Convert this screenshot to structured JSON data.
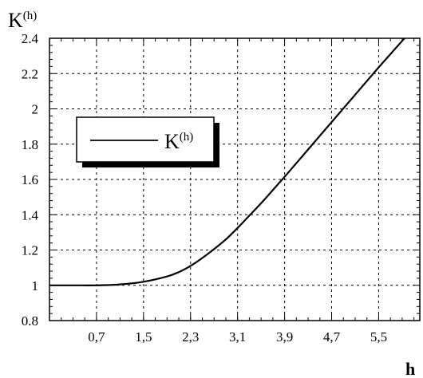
{
  "chart_data": {
    "type": "line",
    "title": "",
    "ylabel": "K",
    "ylabel_sup": "(h)",
    "xlabel": "h",
    "xlim": [
      -0.1,
      6.2
    ],
    "ylim": [
      0.8,
      2.4
    ],
    "grid": true,
    "legend_position": "left-middle",
    "x_ticks": [
      0.7,
      1.5,
      2.3,
      3.1,
      3.9,
      4.7,
      5.5
    ],
    "x_tick_labels": [
      "0,7",
      "1,5",
      "2,3",
      "3,1",
      "3,9",
      "4,7",
      "5,5"
    ],
    "y_ticks": [
      0.8,
      1.0,
      1.2,
      1.4,
      1.6,
      1.8,
      2.0,
      2.2,
      2.4
    ],
    "y_tick_labels": [
      "0.8",
      "1",
      "1.2",
      "1.4",
      "1.6",
      "1.8",
      "2",
      "2.2",
      "2.4"
    ],
    "series": [
      {
        "name": "K",
        "name_sup": "(h)",
        "x": [
          -0.1,
          0.3,
          0.7,
          1.1,
          1.5,
          1.9,
          2.1,
          2.3,
          2.5,
          2.7,
          2.9,
          3.1,
          3.3,
          3.5,
          3.7,
          3.9,
          4.3,
          4.7,
          5.1,
          5.5,
          5.9,
          6.2
        ],
        "y": [
          1.0,
          1.0,
          1.0,
          1.005,
          1.02,
          1.05,
          1.075,
          1.11,
          1.155,
          1.205,
          1.26,
          1.325,
          1.395,
          1.465,
          1.54,
          1.615,
          1.77,
          1.925,
          2.08,
          2.235,
          2.385,
          2.5
        ]
      }
    ]
  }
}
